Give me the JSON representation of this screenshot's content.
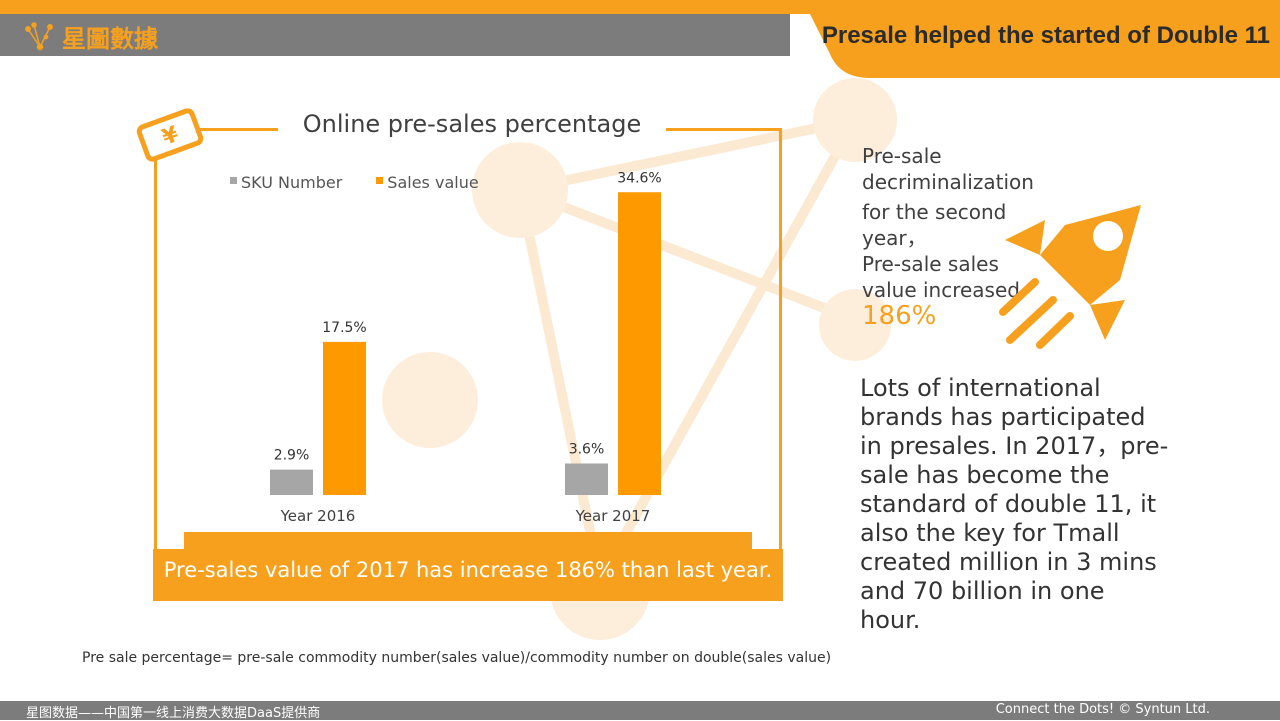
{
  "header": {
    "logo_text": "星圖數據",
    "title": "Presale helped the started of Double 11"
  },
  "chart_data": {
    "type": "bar",
    "title": "Online pre-sales percentage",
    "categories": [
      "Year 2016",
      "Year 2017"
    ],
    "series": [
      {
        "name": "SKU Number",
        "values": [
          2.9,
          3.6
        ],
        "labels": [
          "2.9%",
          "3.6%"
        ],
        "color": "#A6A6A6"
      },
      {
        "name": "Sales value",
        "values": [
          17.5,
          34.6
        ],
        "labels": [
          "17.5%",
          "34.6%"
        ],
        "color": "#FF9900"
      }
    ],
    "ylim": [
      0,
      36
    ],
    "grid": false,
    "legend": "top-left"
  },
  "note": "Pre-sales value of 2017 has increase 186% than last year.",
  "side_small": {
    "line1": "Pre-sale",
    "line2": "decriminalization",
    "line3": "for the second year，",
    "line4": "Pre-sale sales",
    "line5": "value increased",
    "percent": "186%"
  },
  "side_big": "Lots of international brands has participated in presales. In 2017，pre-sale has become the standard of double 11, it also the key for Tmall created million in 3 mins and 70 billion in one hour.",
  "footnote": "Pre sale percentage= pre-sale commodity number(sales value)/commodity number on double(sales value)",
  "footer": {
    "left": "星图数据——中国第一线上消费大数据DaaS提供商",
    "right": "Connect the Dots! © Syntun Ltd."
  },
  "colors": {
    "accent": "#F7A01E",
    "gray": "#7C7C7C"
  }
}
